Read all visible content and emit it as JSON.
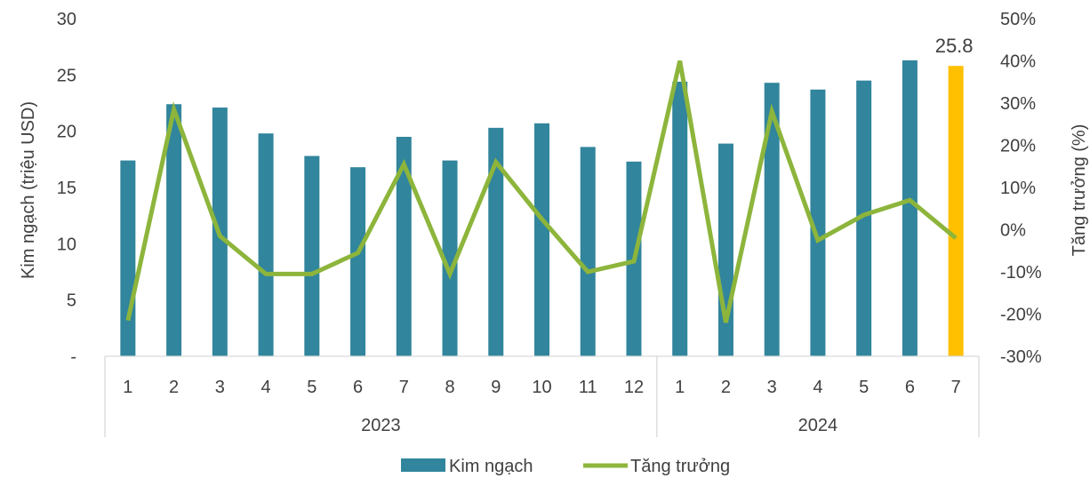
{
  "chart_data": {
    "type": "bar",
    "categories": [
      "1",
      "2",
      "3",
      "4",
      "5",
      "6",
      "7",
      "8",
      "9",
      "10",
      "11",
      "12",
      "1",
      "2",
      "3",
      "4",
      "5",
      "6",
      "7"
    ],
    "groups": [
      {
        "label": "2023",
        "count": 12
      },
      {
        "label": "2024",
        "count": 7
      }
    ],
    "series": [
      {
        "name": "Kim ngạch",
        "type": "bar",
        "axis": "left",
        "color": "#31859C",
        "values": [
          17.4,
          22.4,
          22.1,
          19.8,
          17.8,
          16.8,
          19.5,
          17.4,
          20.3,
          20.7,
          18.6,
          17.3,
          24.4,
          18.9,
          24.3,
          23.7,
          24.5,
          26.3,
          25.8
        ],
        "highlight": {
          "index": 18,
          "color": "#FFC000",
          "label": "25.8"
        }
      },
      {
        "name": "Tăng trưởng",
        "type": "line",
        "axis": "right",
        "color": "#8DB53C",
        "values": [
          -21.5,
          28.5,
          -1.5,
          -10.5,
          -10.5,
          -5.5,
          15.5,
          -10.5,
          16.0,
          2.5,
          -10.0,
          -7.5,
          40.0,
          -22.0,
          28.0,
          -2.5,
          3.5,
          7.0,
          -2.0
        ]
      }
    ],
    "left_axis": {
      "label": "Kim ngạch (triệu USD)",
      "ylim": [
        0,
        30
      ],
      "ticks": [
        {
          "value": 0,
          "label": "-"
        },
        {
          "value": 5,
          "label": "5"
        },
        {
          "value": 10,
          "label": "10"
        },
        {
          "value": 15,
          "label": "15"
        },
        {
          "value": 20,
          "label": "20"
        },
        {
          "value": 25,
          "label": "25"
        },
        {
          "value": 30,
          "label": "30"
        }
      ]
    },
    "right_axis": {
      "label": "Tăng trưởng (%)",
      "ylim": [
        -30,
        50
      ],
      "ticks": [
        {
          "value": -30,
          "label": "-30%"
        },
        {
          "value": -20,
          "label": "-20%"
        },
        {
          "value": -10,
          "label": "-10%"
        },
        {
          "value": 0,
          "label": "0%"
        },
        {
          "value": 10,
          "label": "10%"
        },
        {
          "value": 20,
          "label": "20%"
        },
        {
          "value": 30,
          "label": "30%"
        },
        {
          "value": 40,
          "label": "40%"
        },
        {
          "value": 50,
          "label": "50%"
        }
      ]
    },
    "grid": false,
    "legend_position": "bottom",
    "legend": [
      {
        "label": "Kim ngạch",
        "color": "#31859C",
        "kind": "bar"
      },
      {
        "label": "Tăng trưởng",
        "color": "#8DB53C",
        "kind": "line"
      }
    ]
  }
}
